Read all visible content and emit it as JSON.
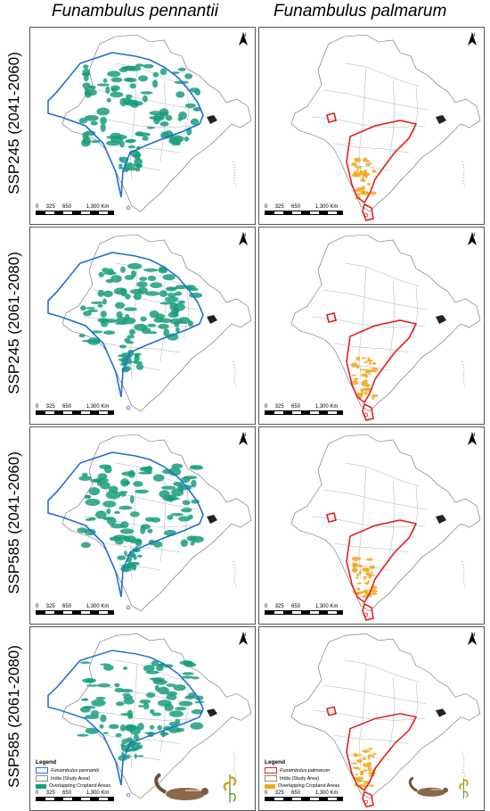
{
  "columns": [
    {
      "title": "Funambulus pennantii",
      "range_color": "#1f6fd6",
      "crop_color": "#1a9e7c"
    },
    {
      "title": "Funambulus palmarum",
      "range_color": "#e02020",
      "crop_color": "#f0a81c"
    }
  ],
  "rows": [
    {
      "label": "SSP245 (2041-2060)"
    },
    {
      "label": "SSP245 (2061-2080)"
    },
    {
      "label": "SSP585 (2041-2060)"
    },
    {
      "label": "SSP585 (2061-2080)"
    }
  ],
  "scale": {
    "text": "0     325     650          1,300 Km"
  },
  "north": "N",
  "legend": [
    {
      "title": "Legend",
      "range_label": "Funambulus pennantii",
      "india_label": "India (Study Area)",
      "crop_label": "Overlapping Cropland Areas"
    },
    {
      "title": "Legend",
      "range_label": "Funambulus palmarum",
      "india_label": "India (Study Area)",
      "crop_label": "Overlapping Cropland Areas"
    }
  ],
  "icons": {
    "animal": "squirrel-illustration",
    "crop": "grain-stalk-illustration"
  }
}
